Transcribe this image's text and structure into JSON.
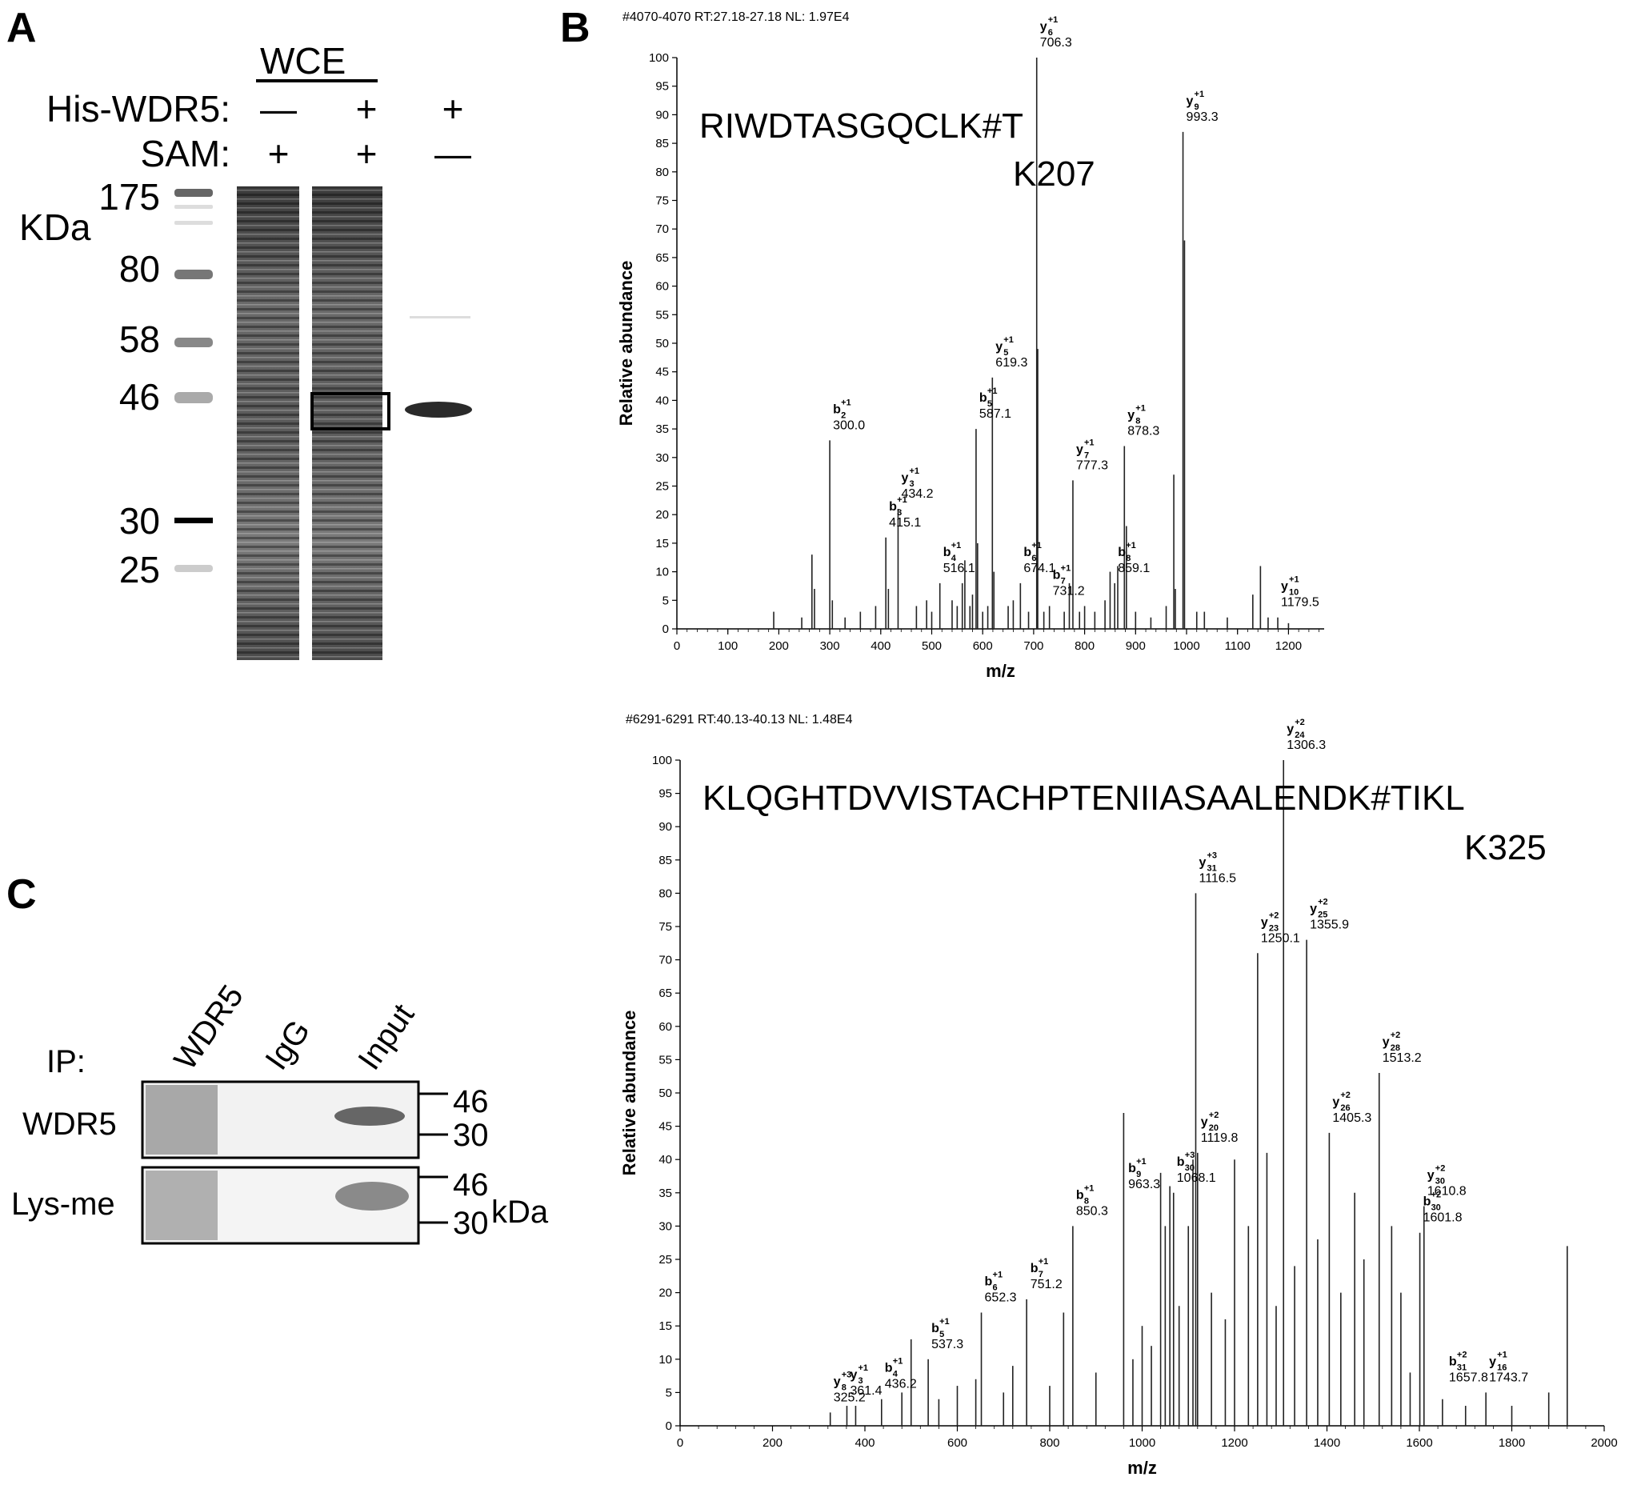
{
  "panel_labels": {
    "a": "A",
    "b": "B",
    "c": "C"
  },
  "panel_a": {
    "wce_label": "WCE",
    "row1_label": "His-WDR5:",
    "row2_label": "SAM:",
    "row1_signs": [
      "—",
      "+",
      "+"
    ],
    "row2_signs": [
      "+",
      "+",
      "—"
    ],
    "unit_label": "KDa",
    "markers": [
      "175",
      "80",
      "58",
      "46",
      "30",
      "25"
    ]
  },
  "panel_c": {
    "ip_label": "IP:",
    "lane_labels": [
      "WDR5",
      "IgG",
      "Input"
    ],
    "blot1_label": "WDR5",
    "blot2_label": "Lys-me",
    "blot1_markers": [
      "46",
      "30"
    ],
    "blot2_markers": [
      "46",
      "30"
    ],
    "unit": "kDa"
  },
  "chart_data": [
    {
      "type": "bar",
      "header": "#4070-4070 RT:27.18-27.18 NL: 1.97E4",
      "peptide": "RIWDTASGQCLK#T",
      "site": "K207",
      "xlabel": "m/z",
      "ylabel": "Relative abundance",
      "xlim": [
        0,
        1270
      ],
      "ylim": [
        0,
        100
      ],
      "xticks": [
        "0",
        "100",
        "200",
        "300",
        "400",
        "500",
        "600",
        "700",
        "800",
        "900",
        "1000",
        "1100",
        "1200"
      ],
      "yticks": [
        "0",
        "5",
        "10",
        "15",
        "20",
        "25",
        "30",
        "35",
        "40",
        "45",
        "50",
        "55",
        "60",
        "65",
        "70",
        "75",
        "80",
        "85",
        "90",
        "95",
        "100"
      ],
      "peaks": [
        [
          190,
          3
        ],
        [
          245,
          2
        ],
        [
          265,
          13
        ],
        [
          270,
          7
        ],
        [
          300,
          33
        ],
        [
          305,
          5
        ],
        [
          330,
          2
        ],
        [
          360,
          3
        ],
        [
          390,
          4
        ],
        [
          410,
          16
        ],
        [
          415,
          7
        ],
        [
          434,
          21
        ],
        [
          470,
          4
        ],
        [
          490,
          5
        ],
        [
          500,
          3
        ],
        [
          516,
          8
        ],
        [
          540,
          5
        ],
        [
          550,
          4
        ],
        [
          560,
          8
        ],
        [
          565,
          12
        ],
        [
          575,
          4
        ],
        [
          580,
          6
        ],
        [
          587,
          35
        ],
        [
          590,
          15
        ],
        [
          600,
          3
        ],
        [
          610,
          4
        ],
        [
          619,
          44
        ],
        [
          622,
          10
        ],
        [
          650,
          4
        ],
        [
          660,
          5
        ],
        [
          674,
          8
        ],
        [
          690,
          3
        ],
        [
          706,
          100
        ],
        [
          708,
          49
        ],
        [
          720,
          3
        ],
        [
          731,
          4
        ],
        [
          760,
          3
        ],
        [
          770,
          8
        ],
        [
          777,
          26
        ],
        [
          790,
          3
        ],
        [
          800,
          4
        ],
        [
          820,
          3
        ],
        [
          840,
          5
        ],
        [
          850,
          10
        ],
        [
          859,
          8
        ],
        [
          865,
          11
        ],
        [
          878,
          32
        ],
        [
          882,
          18
        ],
        [
          900,
          3
        ],
        [
          930,
          2
        ],
        [
          960,
          4
        ],
        [
          975,
          27
        ],
        [
          978,
          7
        ],
        [
          993,
          87
        ],
        [
          996,
          68
        ],
        [
          1020,
          3
        ],
        [
          1035,
          3
        ],
        [
          1080,
          2
        ],
        [
          1130,
          6
        ],
        [
          1145,
          11
        ],
        [
          1160,
          2
        ],
        [
          1179,
          2
        ],
        [
          1200,
          1
        ]
      ],
      "ions": [
        {
          "letter": "b",
          "sub": "2",
          "sup": "+1",
          "mz": "300.0",
          "x": 300,
          "y": 33
        },
        {
          "letter": "b",
          "sub": "3",
          "sup": "+1",
          "mz": "415.1",
          "x": 410,
          "y": 16
        },
        {
          "letter": "y",
          "sub": "3",
          "sup": "+1",
          "mz": "434.2",
          "x": 434,
          "y": 21
        },
        {
          "letter": "b",
          "sub": "4",
          "sup": "+1",
          "mz": "516.1",
          "x": 516,
          "y": 8
        },
        {
          "letter": "b",
          "sub": "5",
          "sup": "+1",
          "mz": "587.1",
          "x": 587,
          "y": 35
        },
        {
          "letter": "y",
          "sub": "5",
          "sup": "+1",
          "mz": "619.3",
          "x": 619,
          "y": 44
        },
        {
          "letter": "b",
          "sub": "6",
          "sup": "+1",
          "mz": "674.1",
          "x": 674,
          "y": 8
        },
        {
          "letter": "y",
          "sub": "6",
          "sup": "+1",
          "mz": "706.3",
          "x": 706,
          "y": 100
        },
        {
          "letter": "b",
          "sub": "7",
          "sup": "+1",
          "mz": "731.2",
          "x": 731,
          "y": 4
        },
        {
          "letter": "y",
          "sub": "7",
          "sup": "+1",
          "mz": "777.3",
          "x": 777,
          "y": 26
        },
        {
          "letter": "b",
          "sub": "8",
          "sup": "+1",
          "mz": "859.1",
          "x": 859,
          "y": 8
        },
        {
          "letter": "y",
          "sub": "8",
          "sup": "+1",
          "mz": "878.3",
          "x": 878,
          "y": 32
        },
        {
          "letter": "y",
          "sub": "9",
          "sup": "+1",
          "mz": "993.3",
          "x": 993,
          "y": 87
        },
        {
          "letter": "y",
          "sub": "10",
          "sup": "+1",
          "mz": "1179.5",
          "x": 1179,
          "y": 2
        }
      ]
    },
    {
      "type": "bar",
      "header": "#6291-6291 RT:40.13-40.13 NL: 1.48E4",
      "peptide": "KLQGHTDVVISTACHPTENIIASAALENDK#TIKL",
      "site": "K325",
      "xlabel": "m/z",
      "ylabel": "Relative abundance",
      "xlim": [
        0,
        2000
      ],
      "ylim": [
        0,
        100
      ],
      "xticks": [
        "0",
        "200",
        "400",
        "600",
        "800",
        "1000",
        "1200",
        "1400",
        "1600",
        "1800",
        "2000"
      ],
      "yticks": [
        "0",
        "5",
        "10",
        "15",
        "20",
        "25",
        "30",
        "35",
        "40",
        "45",
        "50",
        "55",
        "60",
        "65",
        "70",
        "75",
        "80",
        "85",
        "90",
        "95",
        "100"
      ],
      "peaks": [
        [
          325,
          2
        ],
        [
          361,
          3
        ],
        [
          380,
          3
        ],
        [
          436,
          4
        ],
        [
          480,
          5
        ],
        [
          500,
          13
        ],
        [
          537,
          10
        ],
        [
          560,
          4
        ],
        [
          600,
          6
        ],
        [
          640,
          7
        ],
        [
          652,
          17
        ],
        [
          700,
          5
        ],
        [
          720,
          9
        ],
        [
          750,
          19
        ],
        [
          800,
          6
        ],
        [
          830,
          17
        ],
        [
          850,
          30
        ],
        [
          900,
          8
        ],
        [
          960,
          47
        ],
        [
          980,
          10
        ],
        [
          1000,
          15
        ],
        [
          1020,
          12
        ],
        [
          1040,
          38
        ],
        [
          1050,
          30
        ],
        [
          1060,
          36
        ],
        [
          1068,
          35
        ],
        [
          1080,
          18
        ],
        [
          1100,
          30
        ],
        [
          1110,
          40
        ],
        [
          1116,
          80
        ],
        [
          1120,
          41
        ],
        [
          1150,
          20
        ],
        [
          1180,
          16
        ],
        [
          1200,
          40
        ],
        [
          1230,
          30
        ],
        [
          1250,
          71
        ],
        [
          1270,
          41
        ],
        [
          1290,
          18
        ],
        [
          1306,
          100
        ],
        [
          1330,
          24
        ],
        [
          1356,
          73
        ],
        [
          1380,
          28
        ],
        [
          1405,
          44
        ],
        [
          1430,
          20
        ],
        [
          1460,
          35
        ],
        [
          1480,
          25
        ],
        [
          1513,
          53
        ],
        [
          1540,
          30
        ],
        [
          1560,
          20
        ],
        [
          1580,
          8
        ],
        [
          1601,
          29
        ],
        [
          1610,
          33
        ],
        [
          1650,
          4
        ],
        [
          1700,
          3
        ],
        [
          1744,
          5
        ],
        [
          1800,
          3
        ],
        [
          1880,
          5
        ],
        [
          1920,
          27
        ]
      ],
      "ions": [
        {
          "letter": "y",
          "sub": "8",
          "sup": "+3",
          "mz": "325.2",
          "x": 325,
          "y": 2
        },
        {
          "letter": "y",
          "sub": "3",
          "sup": "+1",
          "mz": "361.4",
          "x": 361,
          "y": 3
        },
        {
          "letter": "b",
          "sub": "4",
          "sup": "+1",
          "mz": "436.2",
          "x": 436,
          "y": 4
        },
        {
          "letter": "b",
          "sub": "5",
          "sup": "+1",
          "mz": "537.3",
          "x": 537,
          "y": 10
        },
        {
          "letter": "b",
          "sub": "6",
          "sup": "+1",
          "mz": "652.3",
          "x": 652,
          "y": 17
        },
        {
          "letter": "b",
          "sub": "7",
          "sup": "+1",
          "mz": "751.2",
          "x": 751,
          "y": 19
        },
        {
          "letter": "b",
          "sub": "8",
          "sup": "+1",
          "mz": "850.3",
          "x": 850,
          "y": 30
        },
        {
          "letter": "b",
          "sub": "9",
          "sup": "+1",
          "mz": "963.3",
          "x": 963,
          "y": 34
        },
        {
          "letter": "b",
          "sub": "30",
          "sup": "+3",
          "mz": "1068.1",
          "x": 1068,
          "y": 35
        },
        {
          "letter": "y",
          "sub": "31",
          "sup": "+3",
          "mz": "1116.5",
          "x": 1116,
          "y": 80
        },
        {
          "letter": "y",
          "sub": "20",
          "sup": "+2",
          "mz": "1119.8",
          "x": 1120,
          "y": 41
        },
        {
          "letter": "y",
          "sub": "23",
          "sup": "+2",
          "mz": "1250.1",
          "x": 1250,
          "y": 71
        },
        {
          "letter": "y",
          "sub": "24",
          "sup": "+2",
          "mz": "1306.3",
          "x": 1306,
          "y": 100
        },
        {
          "letter": "y",
          "sub": "25",
          "sup": "+2",
          "mz": "1355.9",
          "x": 1356,
          "y": 73
        },
        {
          "letter": "y",
          "sub": "26",
          "sup": "+2",
          "mz": "1405.3",
          "x": 1405,
          "y": 44
        },
        {
          "letter": "y",
          "sub": "28",
          "sup": "+2",
          "mz": "1513.2",
          "x": 1513,
          "y": 53
        },
        {
          "letter": "b",
          "sub": "30",
          "sup": "+2",
          "mz": "1601.8",
          "x": 1601,
          "y": 29
        },
        {
          "letter": "y",
          "sub": "30",
          "sup": "+2",
          "mz": "1610.8",
          "x": 1610,
          "y": 33
        },
        {
          "letter": "b",
          "sub": "31",
          "sup": "+2",
          "mz": "1657.8",
          "x": 1657,
          "y": 5
        },
        {
          "letter": "y",
          "sub": "16",
          "sup": "+1",
          "mz": "1743.7",
          "x": 1744,
          "y": 5
        }
      ]
    }
  ]
}
